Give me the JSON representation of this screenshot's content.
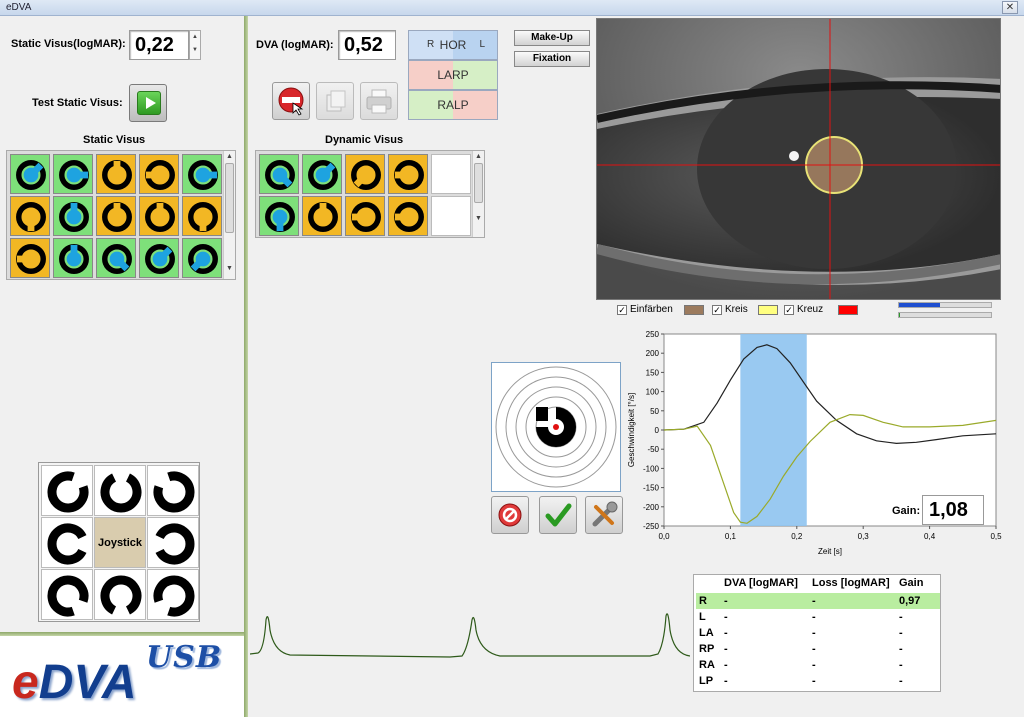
{
  "window": {
    "title": "eDVA",
    "close_glyph": "✕"
  },
  "static_visus": {
    "label": "Static Visus(logMAR):",
    "value": "0,22",
    "test_label": "Test Static Visus:",
    "grid_title": "Static Visus"
  },
  "dva": {
    "label": "DVA (logMAR):",
    "value": "0,52",
    "grid_title": "Dynamic Visus"
  },
  "hor_button": {
    "r": "R",
    "label": "HOR",
    "l": "L"
  },
  "larp_button": "LARP",
  "ralp_button": "RALP",
  "makeup_button": "Make-Up",
  "fixation_button": "Fixation",
  "overlay": {
    "einfaerben": "Einfärben",
    "kreis": "Kreis",
    "kreuz": "Kreuz",
    "color_einfaerben": "#9c7b5e",
    "color_kreis": "#ffff80",
    "color_kreuz": "#ff0000"
  },
  "joystick": {
    "label": "Joystick"
  },
  "logo": {
    "e": "e",
    "dva": "DVA",
    "usb": "USB"
  },
  "gain": {
    "label": "Gain:",
    "value": "1,08"
  },
  "results_table": {
    "headers": [
      "DVA [logMAR]",
      "Loss [logMAR]",
      "Gain"
    ],
    "rows": [
      {
        "name": "R",
        "dva": "-",
        "loss": "-",
        "gain": "0,97"
      },
      {
        "name": "L",
        "dva": "-",
        "loss": "-",
        "gain": "-"
      },
      {
        "name": "LA",
        "dva": "-",
        "loss": "-",
        "gain": "-"
      },
      {
        "name": "RP",
        "dva": "-",
        "loss": "-",
        "gain": "-"
      },
      {
        "name": "RA",
        "dva": "-",
        "loss": "-",
        "gain": "-"
      },
      {
        "name": "LP",
        "dva": "-",
        "loss": "-",
        "gain": "-"
      }
    ]
  },
  "progress": {
    "bar1": 0.45,
    "bar2": 0.01
  },
  "chart_data": {
    "type": "line",
    "xlabel": "Zeit [s]",
    "ylabel": "Geschwindigkeit [°/s]",
    "xlim": [
      0,
      0.5
    ],
    "ylim": [
      -250,
      250
    ],
    "x_ticks": [
      "0,0",
      "0,1",
      "0,2",
      "0,3",
      "0,4",
      "0,5"
    ],
    "y_ticks": [
      "250",
      "200",
      "150",
      "100",
      "50",
      "0",
      "-50",
      "-100",
      "-150",
      "-200",
      "-250"
    ],
    "highlight_range": [
      0.115,
      0.215
    ],
    "series": [
      {
        "color": "#222222",
        "x": [
          0,
          0.03,
          0.06,
          0.08,
          0.1,
          0.12,
          0.14,
          0.155,
          0.17,
          0.19,
          0.21,
          0.23,
          0.26,
          0.29,
          0.32,
          0.35,
          0.38,
          0.41,
          0.45,
          0.5
        ],
        "y": [
          0,
          2,
          20,
          70,
          130,
          185,
          215,
          222,
          212,
          175,
          125,
          75,
          25,
          -10,
          -28,
          -35,
          -32,
          -25,
          -15,
          -10
        ]
      },
      {
        "color": "#9aaa2a",
        "x": [
          0,
          0.03,
          0.05,
          0.07,
          0.09,
          0.105,
          0.115,
          0.125,
          0.14,
          0.16,
          0.18,
          0.2,
          0.22,
          0.25,
          0.28,
          0.3,
          0.33,
          0.36,
          0.4,
          0.45,
          0.5
        ],
        "y": [
          0,
          2,
          10,
          -40,
          -140,
          -215,
          -240,
          -243,
          -225,
          -180,
          -120,
          -70,
          -30,
          20,
          40,
          38,
          20,
          8,
          8,
          12,
          25
        ]
      }
    ]
  }
}
